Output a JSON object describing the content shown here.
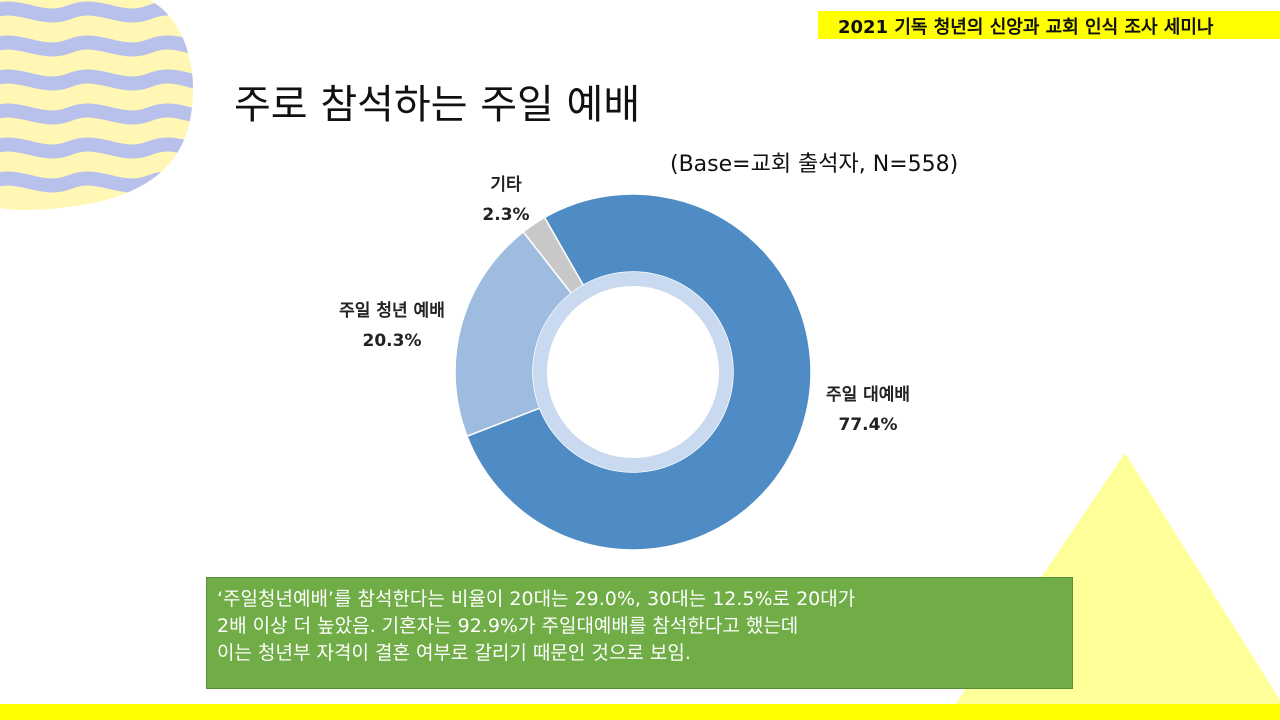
{
  "header": {
    "seminar_title": "2021 기독 청년의 신앙과 교회 인식 조사 세미나"
  },
  "slide": {
    "title": "주로 참석하는 주일 예배",
    "base_note": "(Base=교회 출석자, N=558)"
  },
  "chart_data": {
    "type": "pie",
    "variant": "donut",
    "categories": [
      "주일 대예배",
      "주일 청년 예배",
      "기타"
    ],
    "values": [
      77.4,
      20.3,
      2.3
    ],
    "value_labels": [
      "77.4%",
      "20.3%",
      "2.3%"
    ],
    "colors": [
      "#4f8bc4",
      "#9dbce0",
      "#c8c8c8"
    ],
    "title": "",
    "legend": "none"
  },
  "summary": {
    "lines": [
      "‘주일청년예배’를 참석한다는 비율이 20대는 29.0%, 30대는 12.5%로 20대가",
      "2배 이상 더 높았음. 기혼자는 92.9%가 주일대예배를 참석한다고 했는데",
      "이는 청년부 자격이 결혼 여부로 갈리기 때문인 것으로 보임."
    ]
  },
  "decor": {
    "accent": "#ffff00",
    "wave_color": "#b8c0ec",
    "triangle_color": "#ffff99"
  }
}
